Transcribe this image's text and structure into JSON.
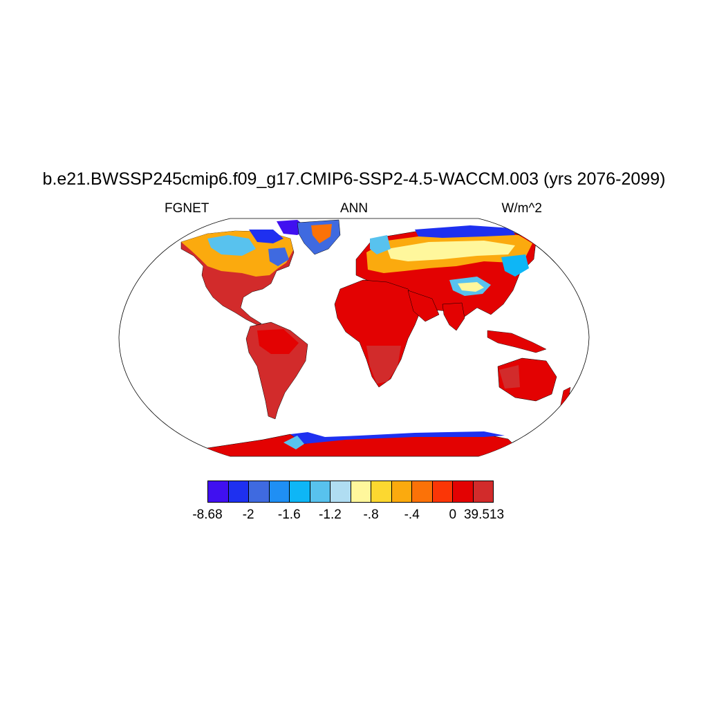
{
  "title": "b.e21.BWSSP245cmip6.f09_g17.CMIP6-SSP2-4.5-WACCM.003 (yrs 2076-2099)",
  "left_label": "FGNET",
  "center_label": "ANN",
  "right_label": "W/m^2",
  "colorbar": {
    "colors": [
      "#4010f0",
      "#1e30f0",
      "#3f6ae0",
      "#1f8ff4",
      "#0eb6f6",
      "#58c2ee",
      "#b0ddf2",
      "#fff79c",
      "#fcd830",
      "#fbaa0e",
      "#fb7208",
      "#fb3606",
      "#e30202",
      "#d22b2b"
    ],
    "labels": [
      "-8.68",
      "-2",
      "-1.6",
      "-1.2",
      "-.8",
      "-.4",
      "0",
      "39.513"
    ]
  },
  "colors": {
    "ocean": "#ffffff",
    "coastline": "#000000",
    "dominant_land": "#e30202"
  }
}
